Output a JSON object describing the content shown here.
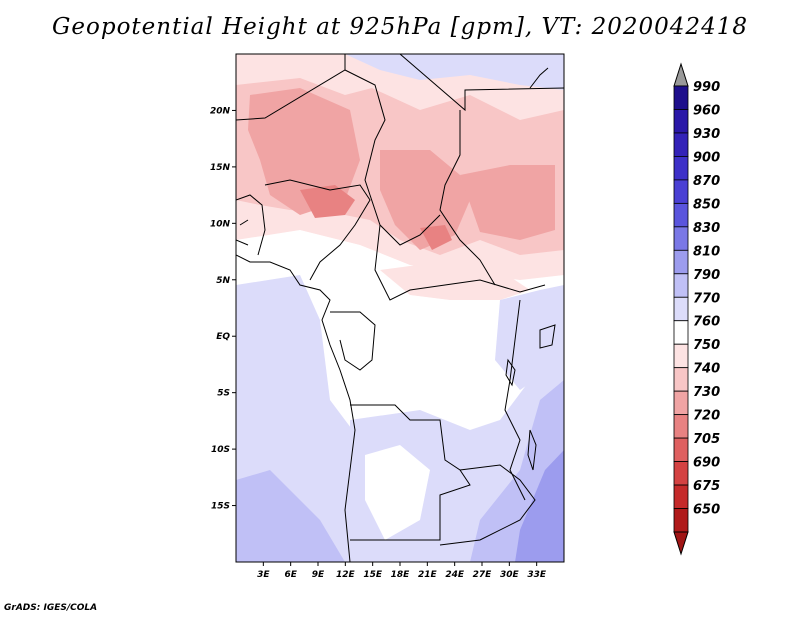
{
  "title": "Geopotential Height at 925hPa [gpm], VT: 2020042418",
  "credit": "GrADS: IGES/COLA",
  "map": {
    "lon_range": [
      0,
      36
    ],
    "lat_range": [
      -20,
      25
    ],
    "lat_ticks": [
      {
        "lat": 20,
        "label": "20N"
      },
      {
        "lat": 15,
        "label": "15N"
      },
      {
        "lat": 10,
        "label": "10N"
      },
      {
        "lat": 5,
        "label": "5N"
      },
      {
        "lat": 0,
        "label": "EQ"
      },
      {
        "lat": -5,
        "label": "5S"
      },
      {
        "lat": -10,
        "label": "10S"
      },
      {
        "lat": -15,
        "label": "15S"
      }
    ],
    "lon_ticks": [
      {
        "lon": 3,
        "label": "3E"
      },
      {
        "lon": 6,
        "label": "6E"
      },
      {
        "lon": 9,
        "label": "9E"
      },
      {
        "lon": 12,
        "label": "12E"
      },
      {
        "lon": 15,
        "label": "15E"
      },
      {
        "lon": 18,
        "label": "18E"
      },
      {
        "lon": 21,
        "label": "21E"
      },
      {
        "lon": 24,
        "label": "24E"
      },
      {
        "lon": 27,
        "label": "27E"
      },
      {
        "lon": 30,
        "label": "30E"
      },
      {
        "lon": 33,
        "label": "33E"
      }
    ]
  },
  "colorbar": {
    "levels": [
      {
        "label": "990",
        "color": "#1e0f8c"
      },
      {
        "label": "960",
        "color": "#2a18a8"
      },
      {
        "label": "930",
        "color": "#3322b8"
      },
      {
        "label": "900",
        "color": "#3d30c8"
      },
      {
        "label": "870",
        "color": "#4a40d4"
      },
      {
        "label": "850",
        "color": "#5a55dd"
      },
      {
        "label": "830",
        "color": "#7a78e6"
      },
      {
        "label": "810",
        "color": "#9c9cee"
      },
      {
        "label": "790",
        "color": "#c0c0f6"
      },
      {
        "label": "770",
        "color": "#dcdcfa"
      },
      {
        "label": "760",
        "color": "#ffffff"
      },
      {
        "label": "750",
        "color": "#fde3e3"
      },
      {
        "label": "740",
        "color": "#f8c6c6"
      },
      {
        "label": "730",
        "color": "#f0a4a4"
      },
      {
        "label": "720",
        "color": "#e88282"
      },
      {
        "label": "705",
        "color": "#df6060"
      },
      {
        "label": "690",
        "color": "#d44242"
      },
      {
        "label": "675",
        "color": "#c52a2a"
      },
      {
        "label": "650",
        "color": "#b01a1a"
      }
    ],
    "top_arrow_color": "#9a9a9a",
    "bottom_arrow_color": "#a01515"
  }
}
